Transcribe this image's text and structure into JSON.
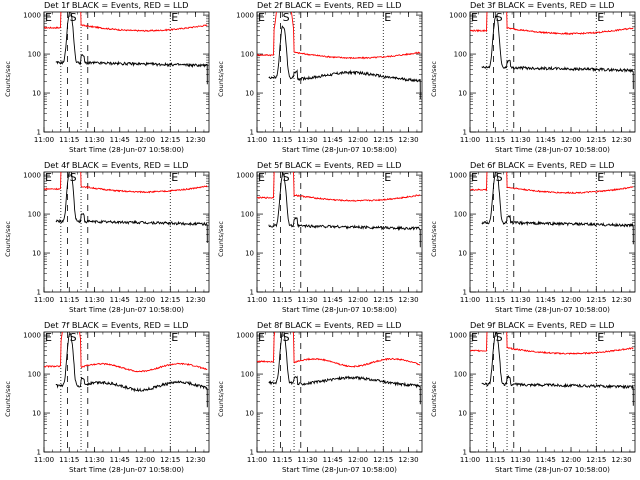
{
  "chart_data": [
    {
      "type": "line",
      "title": "Det 1f BLACK = Events, RED = LLD",
      "xlabel": "Start Time (28-Jun-07 10:58:00)",
      "ylabel": "Counts/sec",
      "red_level": 450,
      "black_level": 60,
      "red_shape": "U",
      "black_shape": "flat"
    },
    {
      "type": "line",
      "title": "Det 2f BLACK = Events, RED = LLD",
      "xlabel": "Start Time (28-Jun-07 10:58:00)",
      "ylabel": "Counts/sec",
      "red_level": 90,
      "black_level": 25,
      "red_shape": "U",
      "black_shape": "hump"
    },
    {
      "type": "line",
      "title": "Det 3f BLACK = Events, RED = LLD",
      "xlabel": "Start Time (28-Jun-07 10:58:00)",
      "ylabel": "Counts/sec",
      "red_level": 380,
      "black_level": 45,
      "red_shape": "U",
      "black_shape": "flat"
    },
    {
      "type": "line",
      "title": "Det 4f BLACK = Events, RED = LLD",
      "xlabel": "Start Time (28-Jun-07 10:58:00)",
      "ylabel": "Counts/sec",
      "red_level": 420,
      "black_level": 65,
      "red_shape": "U",
      "black_shape": "flat"
    },
    {
      "type": "line",
      "title": "Det 5f BLACK = Events, RED = LLD",
      "xlabel": "Start Time (28-Jun-07 10:58:00)",
      "ylabel": "Counts/sec",
      "red_level": 250,
      "black_level": 50,
      "red_shape": "U",
      "black_shape": "flat"
    },
    {
      "type": "line",
      "title": "Det 6f BLACK = Events, RED = LLD",
      "xlabel": "Start Time (28-Jun-07 10:58:00)",
      "ylabel": "Counts/sec",
      "red_level": 400,
      "black_level": 60,
      "red_shape": "U",
      "black_shape": "flat"
    },
    {
      "type": "line",
      "title": "Det 7f BLACK = Events, RED = LLD",
      "xlabel": "Start Time (28-Jun-07 10:58:00)",
      "ylabel": "Counts/sec",
      "red_level": 150,
      "black_level": 50,
      "red_shape": "wave",
      "black_shape": "wave"
    },
    {
      "type": "line",
      "title": "Det 8f BLACK = Events, RED = LLD",
      "xlabel": "Start Time (28-Jun-07 10:58:00)",
      "ylabel": "Counts/sec",
      "red_level": 200,
      "black_level": 60,
      "red_shape": "wave",
      "black_shape": "hump"
    },
    {
      "type": "line",
      "title": "Det 9f BLACK = Events, RED = LLD",
      "xlabel": "Start Time (28-Jun-07 10:58:00)",
      "ylabel": "Counts/sec",
      "red_level": 380,
      "black_level": 55,
      "red_shape": "U",
      "black_shape": "flat"
    }
  ],
  "common": {
    "x_ticks": [
      "11:00",
      "11:15",
      "11:30",
      "11:45",
      "12:00",
      "12:15",
      "12:30"
    ],
    "x_tick_minutes": [
      0,
      15,
      30,
      45,
      60,
      75,
      90
    ],
    "x_range_minutes": [
      0,
      98
    ],
    "y_ticks": [
      "1",
      "10",
      "100",
      "1000"
    ],
    "y_tick_values": [
      1,
      10,
      100,
      1000
    ],
    "y_range": [
      1,
      1200
    ],
    "y_scale": "log",
    "event_start_min": 10,
    "event_end_min": 22,
    "dashed_lines_min": [
      14,
      26
    ],
    "dotted_lines_min": [
      10,
      22,
      75
    ],
    "data_end_min": 97,
    "labels": {
      "E": "E",
      "S": "S"
    },
    "colors": {
      "events": "#000000",
      "lld": "#ff0000"
    }
  }
}
